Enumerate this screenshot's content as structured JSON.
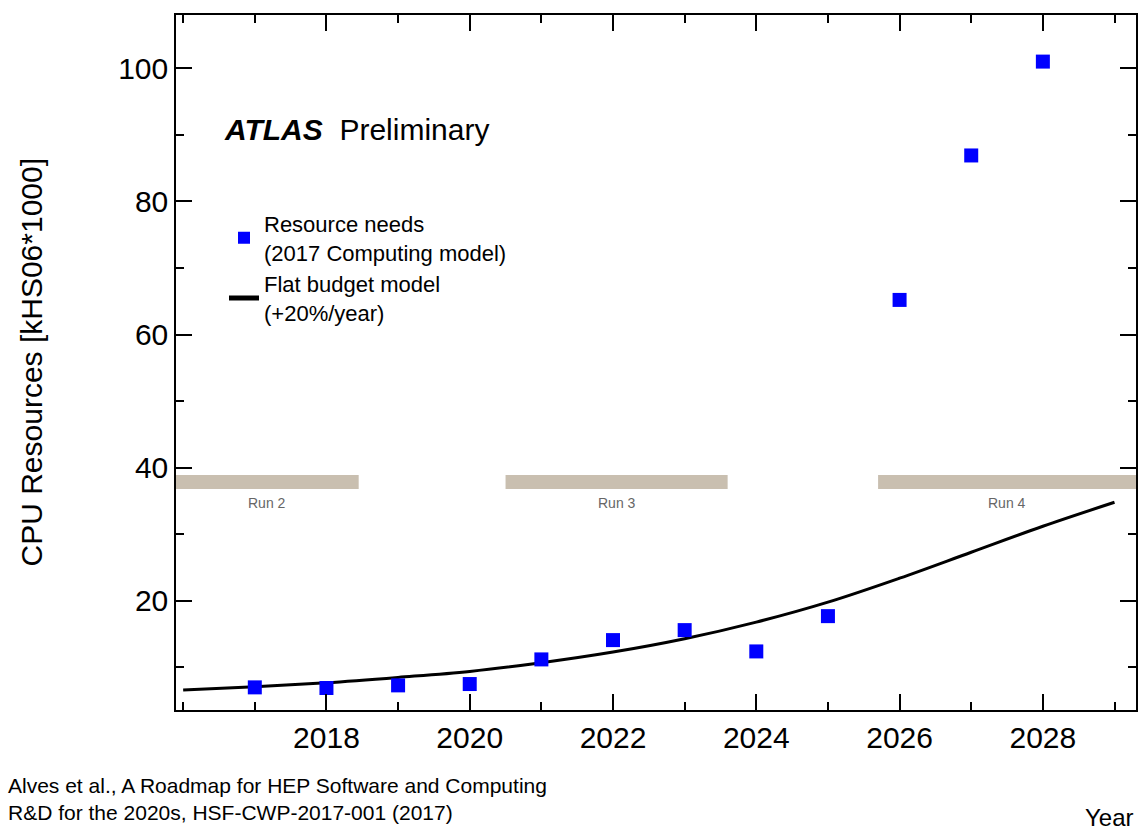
{
  "chart_data": {
    "type": "scatter",
    "x_label": "Year",
    "y_label": "CPU Resources [kHS06*1000]",
    "experiment": "ATLAS",
    "status": "Preliminary",
    "source": "Alves et al., A Roadmap for HEP Software and Computing R&D for the 2020s, HSF-CWP-2017-001 (2017)",
    "series": [
      {
        "name": "Resource needs (2017 Computing model)",
        "type": "scatter",
        "marker": "square",
        "color": "#0000ff",
        "x": [
          2017,
          2018,
          2019,
          2020,
          2021,
          2022,
          2023,
          2024,
          2025,
          2026,
          2027,
          2028
        ],
        "values": [
          7.0,
          6.9,
          7.3,
          7.5,
          11.2,
          14.1,
          15.6,
          12.4,
          17.7,
          65.2,
          86.9,
          101.0
        ]
      },
      {
        "name": "Flat budget model (+20%/year)",
        "type": "line",
        "line_style": "solid",
        "color": "#000000",
        "x": [
          2016,
          2017,
          2018,
          2019,
          2020,
          2021,
          2022,
          2023,
          2024,
          2025,
          2026,
          2027,
          2028,
          2029
        ],
        "values": [
          6.6,
          7.1,
          7.7,
          8.5,
          9.4,
          10.7,
          12.3,
          14.3,
          16.8,
          19.8,
          23.4,
          27.3,
          31.2,
          34.8
        ]
      }
    ],
    "xlim": [
      2015.9,
      2029.3
    ],
    "xticks": [
      2018,
      2020,
      2022,
      2024,
      2026,
      2028
    ],
    "ylim": [
      3.6,
      108
    ],
    "yticks": [
      20,
      40,
      60,
      80,
      100
    ],
    "grid": false,
    "legend": "upper left",
    "runs": [
      {
        "label": "Run 2",
        "start": 2015.9,
        "end": 2018.45
      },
      {
        "label": "Run 3",
        "start": 2020.5,
        "end": 2023.6
      },
      {
        "label": "Run 4",
        "start": 2025.7,
        "end": 2029.3
      }
    ]
  }
}
